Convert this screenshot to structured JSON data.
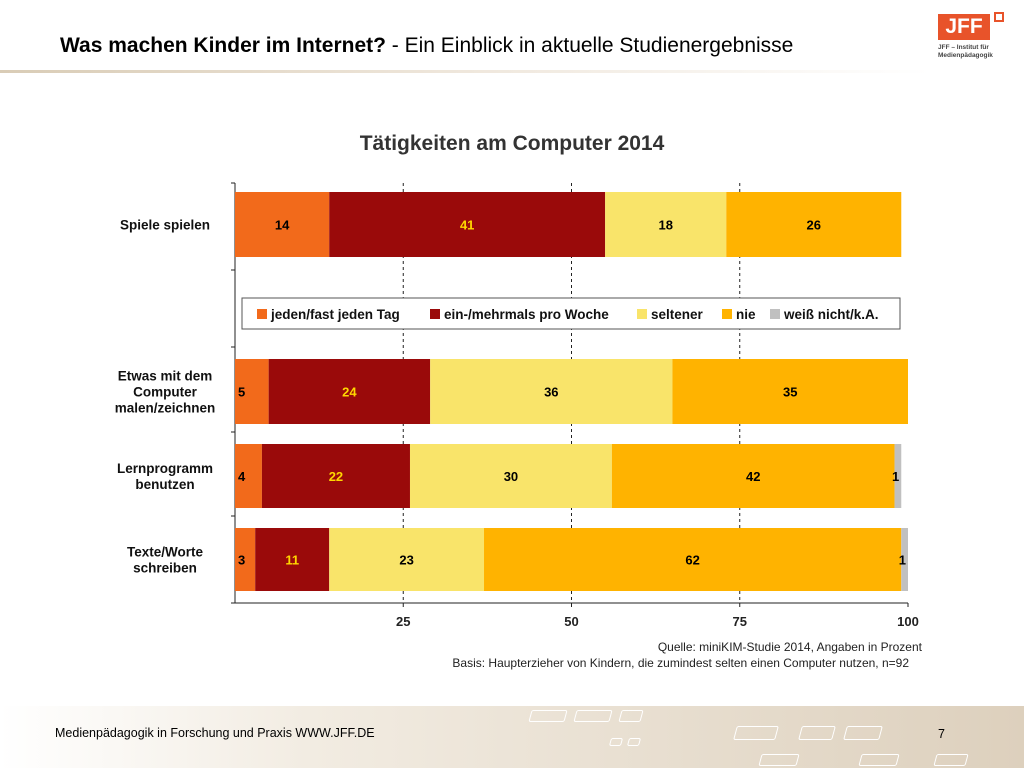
{
  "header": {
    "title_bold": "Was machen Kinder im Internet?",
    "title_rest": " - Ein Einblick in aktuelle Studienergebnisse"
  },
  "logo": {
    "text": "JFF",
    "subtitle": "JFF – Institut für Medienpädagogik"
  },
  "chart_data": {
    "type": "bar",
    "orientation": "horizontal-stacked",
    "title": "Tätigkeiten am Computer 2014",
    "categories": [
      "Spiele spielen",
      "Etwas mit dem Computer malen/zeichnen",
      "Lernprogramm benutzen",
      "Texte/Worte schreiben"
    ],
    "category_lines": [
      [
        "Spiele spielen"
      ],
      [
        "Etwas mit dem",
        "Computer",
        "malen/zeichnen"
      ],
      [
        "Lernprogramm",
        "benutzen"
      ],
      [
        "Texte/Worte",
        "schreiben"
      ]
    ],
    "series": [
      {
        "name": "jeden/fast jeden Tag",
        "color": "#f26a1b",
        "values": [
          14,
          5,
          4,
          3
        ]
      },
      {
        "name": "ein-/mehrmals pro Woche",
        "color": "#9a0a0a",
        "values": [
          41,
          24,
          22,
          11
        ]
      },
      {
        "name": "seltener",
        "color": "#f9e46a",
        "values": [
          18,
          36,
          30,
          23
        ]
      },
      {
        "name": "nie",
        "color": "#ffb300",
        "values": [
          26,
          35,
          42,
          62
        ]
      },
      {
        "name": "weiß nicht/k.A.",
        "color": "#c0c0c0",
        "values": [
          0,
          0,
          1,
          1
        ]
      }
    ],
    "label_colors": [
      "#000000",
      "#ffd700",
      "#000000",
      "#000000",
      "#000000"
    ],
    "xlim": [
      0,
      100
    ],
    "xticks": [
      25,
      50,
      75,
      100
    ],
    "grid": true,
    "legend_position": "middle",
    "source": "Quelle: miniKIM-Studie 2014, Angaben in Prozent",
    "basis": "Basis: Haupterzieher von Kindern, die zumindest selten einen Computer nutzen, n=92"
  },
  "footer": {
    "text": "Medienpädagogik in Forschung und Praxis WWW.JFF.DE",
    "page": "7"
  }
}
